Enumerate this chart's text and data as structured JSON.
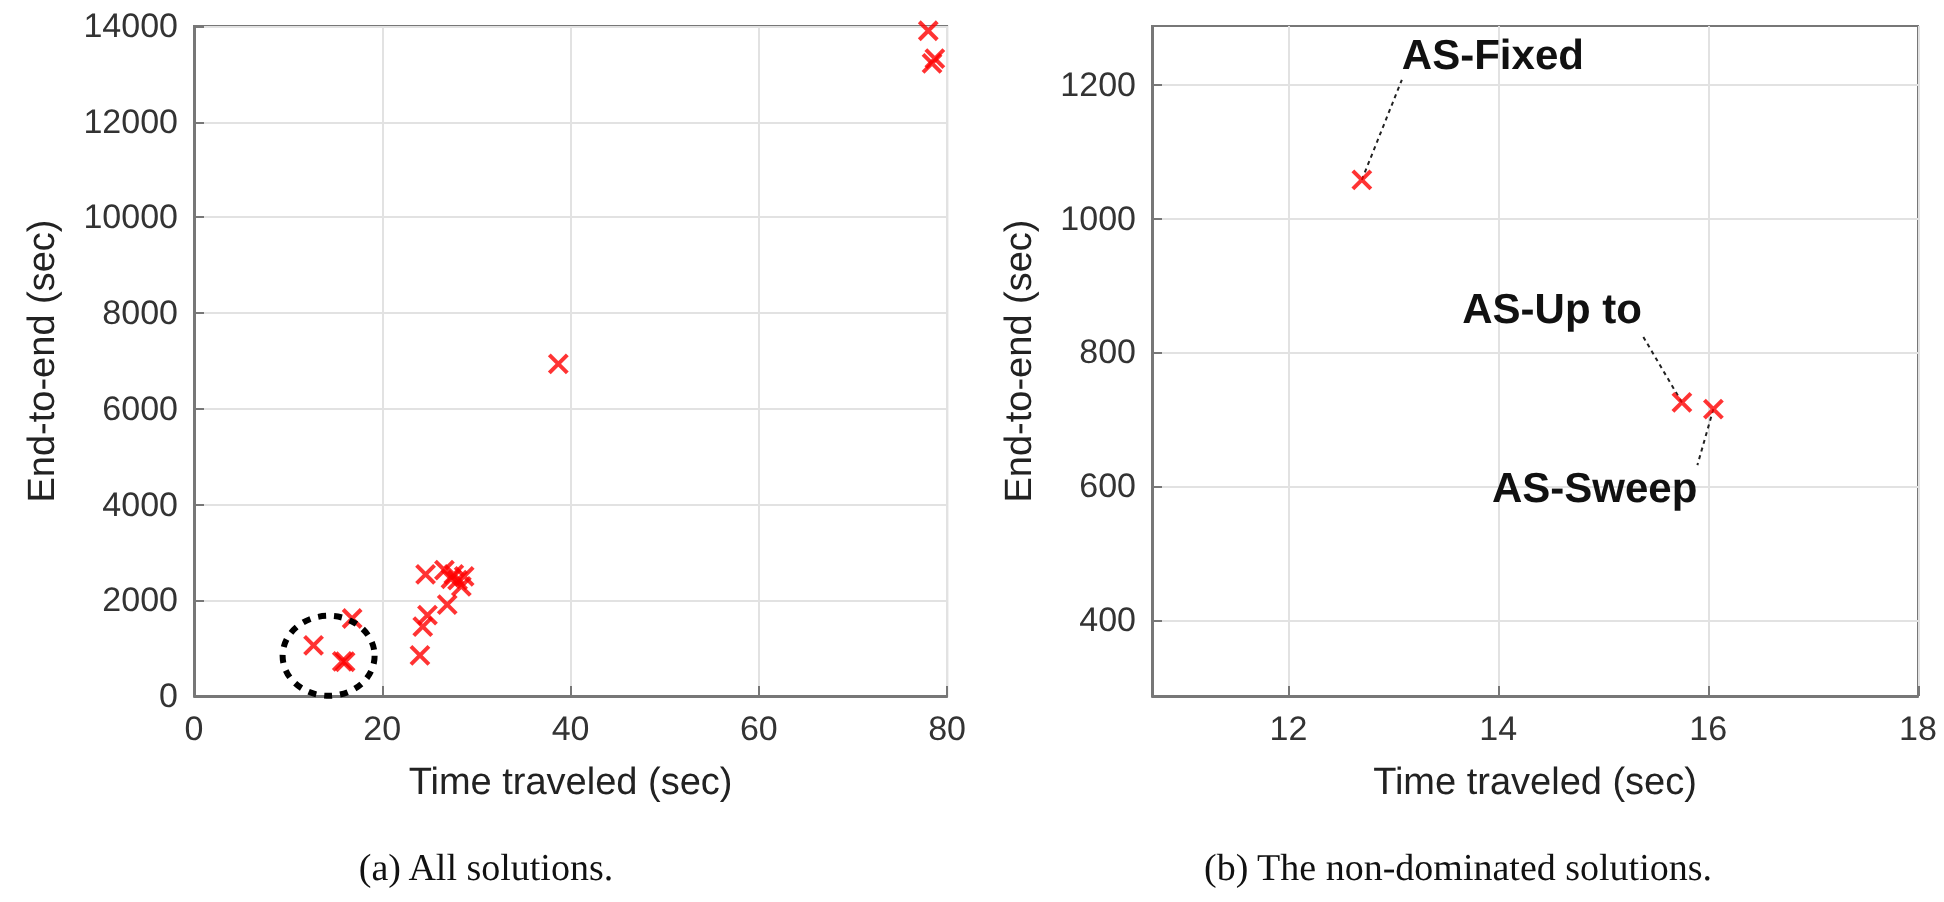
{
  "chart_data": [
    {
      "type": "scatter",
      "title": "(a) All solutions.",
      "xlabel": "Time traveled (sec)",
      "ylabel": "End-to-end (sec)",
      "xlim": [
        0,
        80
      ],
      "ylim": [
        0,
        14000
      ],
      "xticks": [
        0,
        20,
        40,
        60,
        80
      ],
      "yticks": [
        0,
        2000,
        4000,
        6000,
        8000,
        10000,
        12000,
        14000
      ],
      "grid": true,
      "marker": "cross",
      "series": [
        {
          "color": "#ff0000",
          "x": [
            12.7,
            15.75,
            16.05,
            16.8,
            24.0,
            24.3,
            24.8,
            24.6,
            26.6,
            26.9,
            27.3,
            28.0,
            28.4,
            27.6,
            28.7,
            38.7,
            78.0,
            78.7,
            78.4
          ],
          "values": [
            1058,
            725,
            715,
            1620,
            850,
            1450,
            1690,
            2540,
            2630,
            1910,
            2450,
            2420,
            2290,
            2540,
            2500,
            6940,
            13900,
            13320,
            13220
          ]
        }
      ]
    },
    {
      "type": "scatter",
      "title": "(b) The non-dominated solutions.",
      "xlabel": "Time traveled (sec)",
      "ylabel": "End-to-end (sec)",
      "xlim": [
        10.7,
        18
      ],
      "ylim": [
        286,
        1288
      ],
      "xticks": [
        12,
        14,
        16,
        18
      ],
      "yticks": [
        400,
        600,
        800,
        1000,
        1200
      ],
      "grid": true,
      "marker": "cross",
      "series": [
        {
          "color": "#ff0000",
          "x": [
            12.7,
            15.75,
            16.05
          ],
          "values": [
            1058,
            725,
            715
          ]
        }
      ],
      "annotations": [
        {
          "text": "AS-Fixed",
          "x": 12.7,
          "y": 1058
        },
        {
          "text": "AS-Up to",
          "x": 15.75,
          "y": 725
        },
        {
          "text": "AS-Sweep",
          "x": 16.05,
          "y": 715
        }
      ]
    }
  ]
}
